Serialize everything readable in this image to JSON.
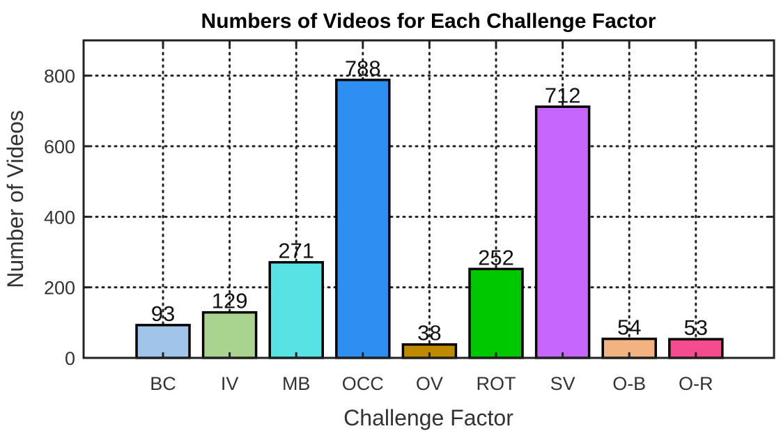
{
  "chart_data": {
    "type": "bar",
    "title": "Numbers of Videos for Each Challenge Factor",
    "xlabel": "Challenge Factor",
    "ylabel": "Number of Videos",
    "categories": [
      "BC",
      "IV",
      "MB",
      "OCC",
      "OV",
      "ROT",
      "SV",
      "O-B",
      "O-R"
    ],
    "values": [
      93,
      129,
      271,
      788,
      38,
      252,
      712,
      54,
      53
    ],
    "colors": [
      "#a0c4ea",
      "#a8d48f",
      "#58e2e4",
      "#2f8ef1",
      "#bd8a00",
      "#00c800",
      "#c766fd",
      "#f3b381",
      "#f74b8f"
    ],
    "ylim": [
      0,
      900
    ],
    "yticks": [
      0,
      200,
      400,
      600,
      800
    ],
    "grid": true,
    "legend": "none"
  }
}
